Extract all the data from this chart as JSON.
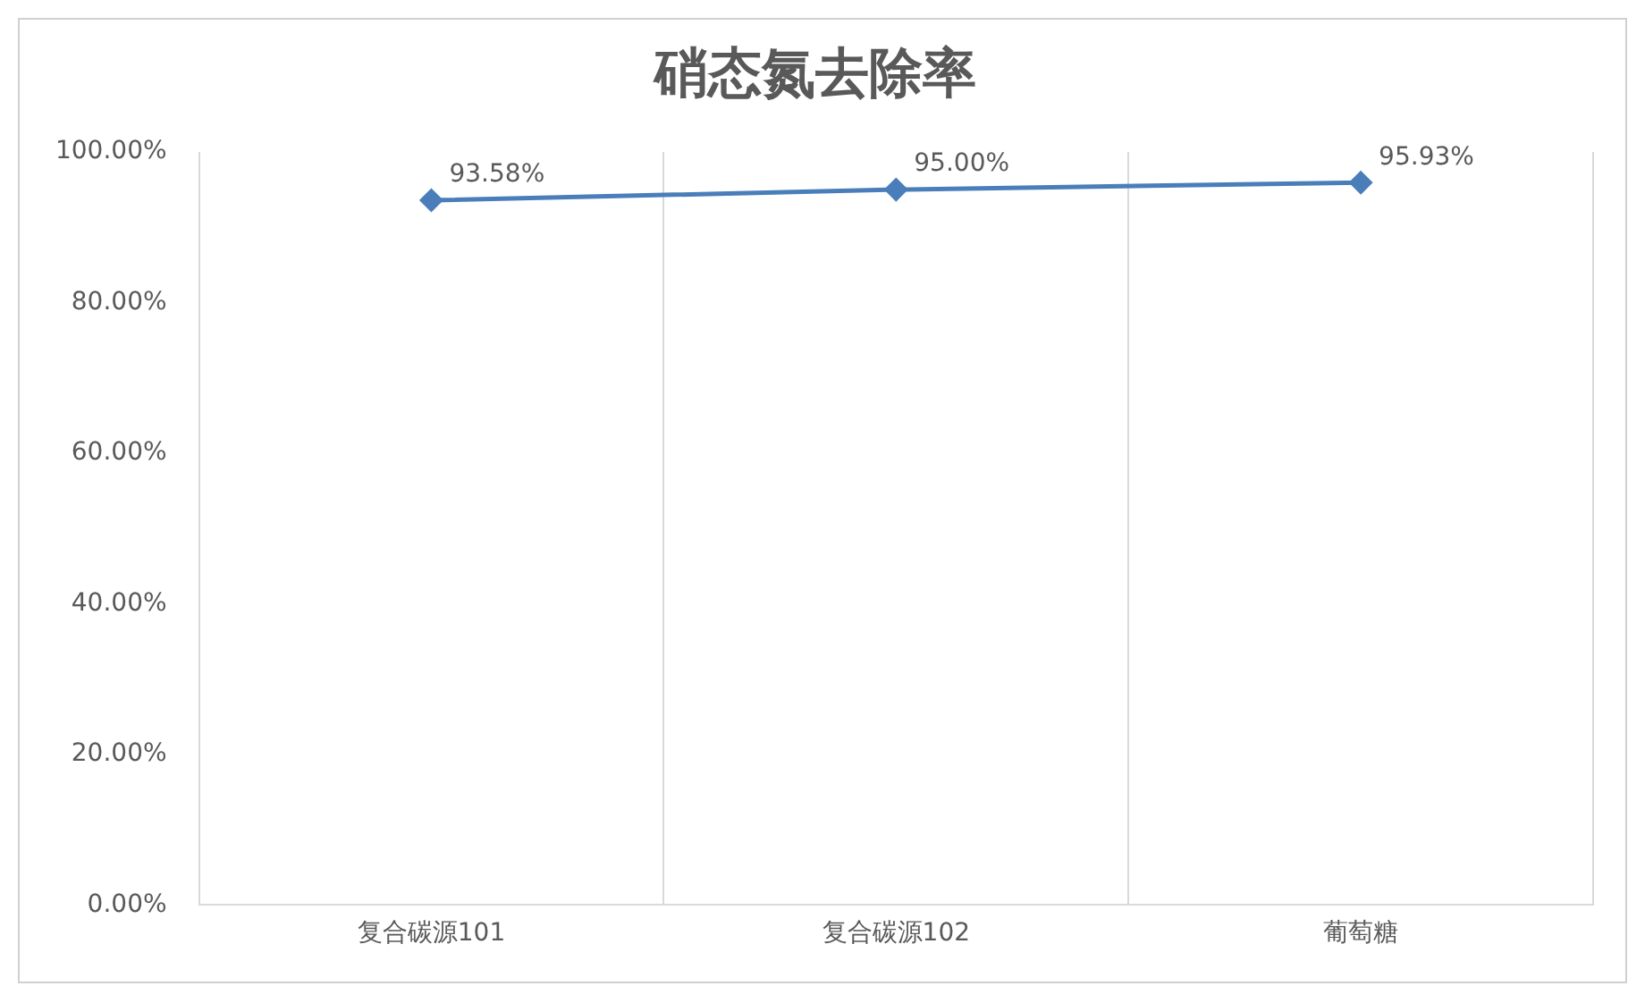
{
  "chart_data": {
    "type": "line",
    "title": "硝态氮去除率",
    "categories": [
      "复合碳源101",
      "复合碳源102",
      "葡萄糖"
    ],
    "series": [
      {
        "color": "#4a7ebb",
        "values": [
          93.58,
          95.0,
          95.93
        ],
        "value_labels": [
          "93.58%",
          "95.00%",
          "95.93%"
        ]
      }
    ],
    "ylim": [
      0,
      100
    ],
    "yticks": [
      {
        "value": 0,
        "label": "0.00%"
      },
      {
        "value": 20,
        "label": "20.00%"
      },
      {
        "value": 40,
        "label": "40.00%"
      },
      {
        "value": 60,
        "label": "60.00%"
      },
      {
        "value": 80,
        "label": "80.00%"
      },
      {
        "value": 100,
        "label": "100.00%"
      }
    ],
    "grid": "x",
    "legend": false,
    "marker": "diamond",
    "line_style": "solid"
  }
}
